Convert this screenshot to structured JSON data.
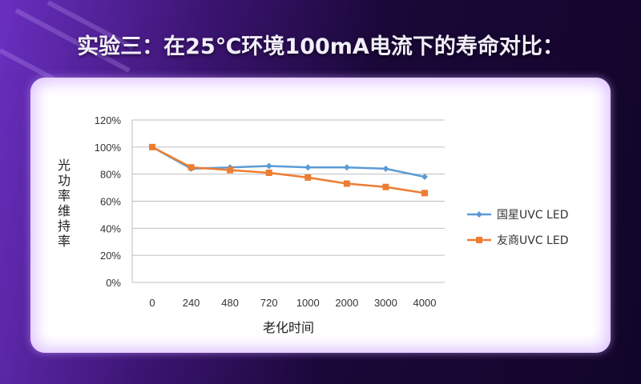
{
  "title": "实验三：在25℃环境100mA电流下的寿命对比：",
  "chart_data": {
    "type": "line",
    "title": "",
    "xlabel": "老化时间",
    "ylabel": "光功率维持率",
    "categories": [
      "0",
      "240",
      "480",
      "720",
      "1000",
      "2000",
      "3000",
      "4000"
    ],
    "yticks": [
      "0%",
      "20%",
      "40%",
      "60%",
      "80%",
      "100%",
      "120%"
    ],
    "ylim": [
      0,
      120
    ],
    "grid": true,
    "legend": "right",
    "series": [
      {
        "name": "国星UVC LED",
        "values": [
          100,
          84,
          85,
          86,
          85,
          85,
          84,
          78
        ],
        "color": "#5b9bd5",
        "marker": "diamond"
      },
      {
        "name": "友商UVC LED",
        "values": [
          100,
          85,
          83,
          81,
          77.5,
          73,
          70.5,
          66
        ],
        "color": "#ed7d31",
        "marker": "square"
      }
    ]
  }
}
